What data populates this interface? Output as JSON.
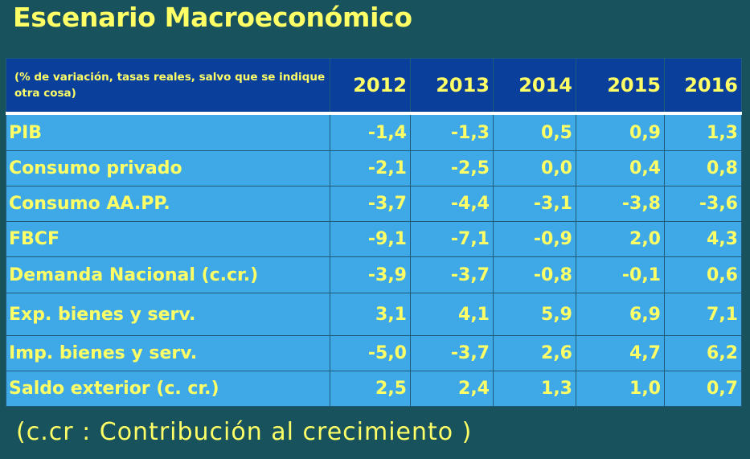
{
  "title": "Escenario Macroeconómico",
  "table": {
    "note": "(% de variación, tasas reales,  salvo que se indique otra cosa)",
    "years": [
      "2012",
      "2013",
      "2014",
      "2015",
      "2016"
    ],
    "rows": [
      {
        "label": "PIB",
        "values": [
          "-1,4",
          "-1,3",
          "0,5",
          "0,9",
          "1,3"
        ]
      },
      {
        "label": "Consumo privado",
        "values": [
          "-2,1",
          "-2,5",
          "0,0",
          "0,4",
          "0,8"
        ]
      },
      {
        "label": "Consumo  AA.PP.",
        "values": [
          "-3,7",
          "-4,4",
          "-3,1",
          "-3,8",
          "-3,6"
        ]
      },
      {
        "label": "FBCF",
        "values": [
          "-9,1",
          "-7,1",
          "-0,9",
          "2,0",
          "4,3"
        ]
      },
      {
        "label": "Demanda Nacional  (c.cr.)",
        "values": [
          "-3,9",
          "-3,7",
          "-0,8",
          "-0,1",
          "0,6"
        ]
      },
      {
        "label": "Exp.  bienes y  serv.",
        "values": [
          "3,1",
          "4,1",
          "5,9",
          "6,9",
          "7,1"
        ]
      },
      {
        "label": "Imp.  bienes y serv.",
        "values": [
          "-5,0",
          "-3,7",
          "2,6",
          "4,7",
          "6,2"
        ]
      },
      {
        "label": "Saldo exterior  (c. cr.)",
        "values": [
          "2,5",
          "2,4",
          "1,3",
          "1,0",
          "0,7"
        ]
      }
    ]
  },
  "footnote": "(c.cr : Contribución al crecimiento )",
  "colors": {
    "background": "#17525d",
    "header_fill": "#0b3f9c",
    "cell_fill": "#3fa9e8",
    "text": "#ffff66"
  }
}
